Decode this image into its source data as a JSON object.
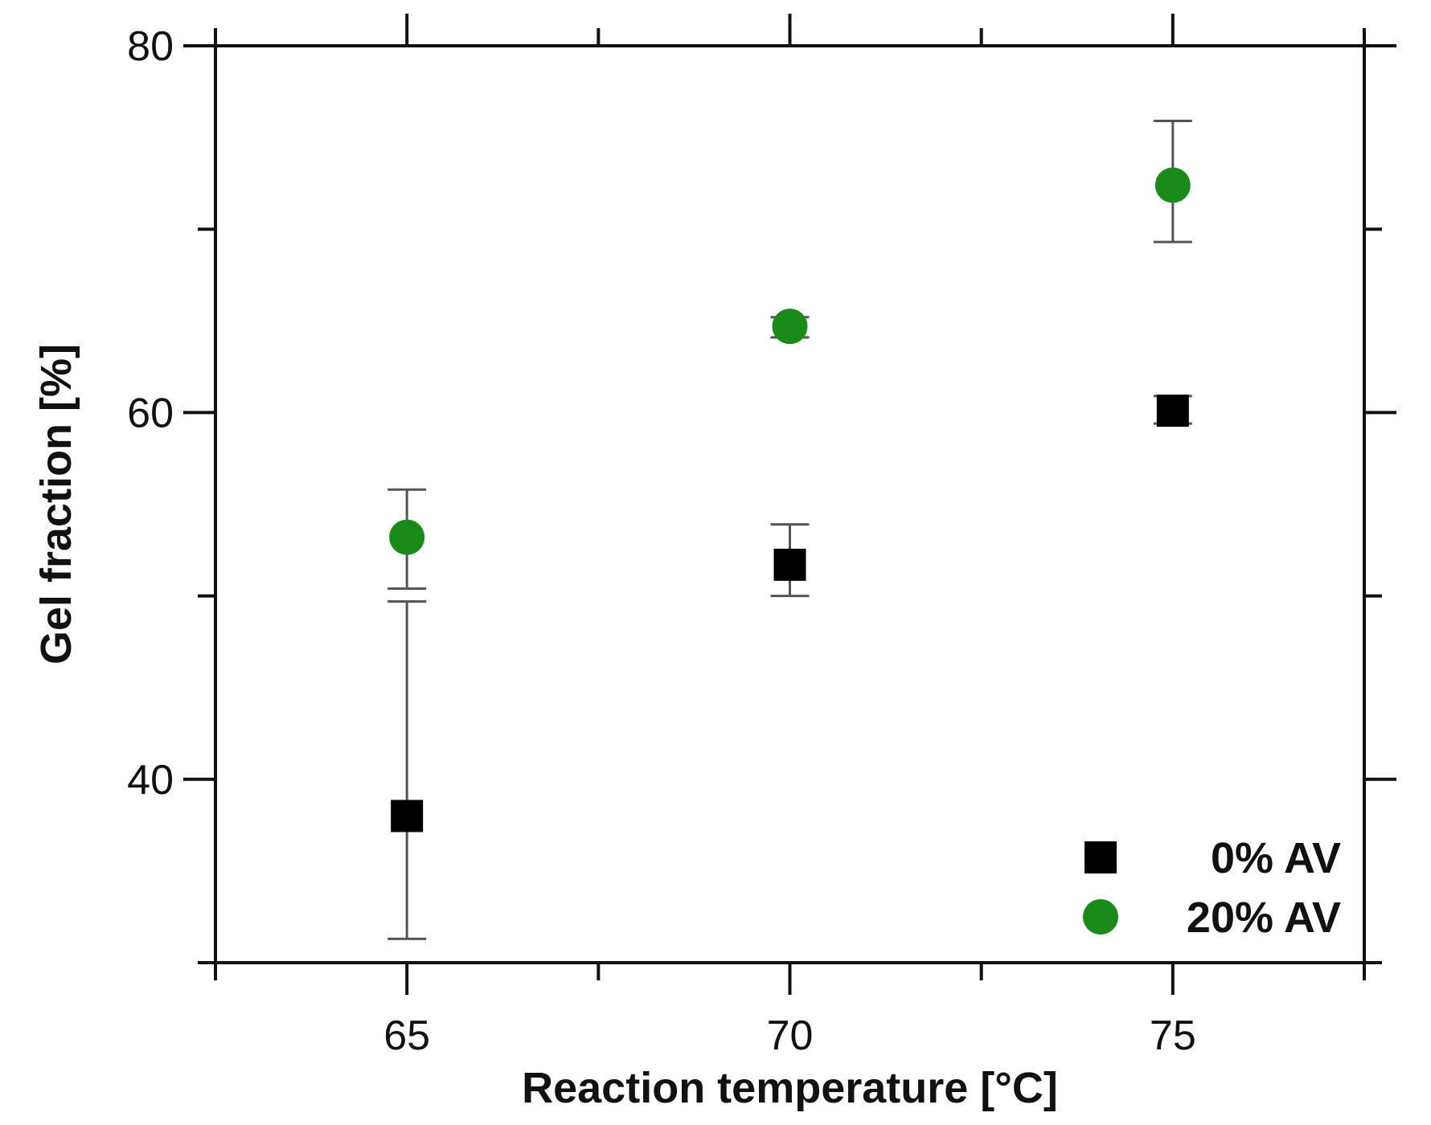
{
  "chart_data": {
    "type": "scatter",
    "title": "",
    "xlabel": "Reaction temperature [°C]",
    "ylabel": "Gel fraction [%]",
    "xlim": [
      62.5,
      77.5
    ],
    "ylim": [
      30,
      80
    ],
    "x_ticks": [
      "65",
      "70",
      "75"
    ],
    "y_ticks": [
      "40",
      "60",
      "80"
    ],
    "grid": false,
    "legend_position": "bottom-right",
    "series": [
      {
        "name": "0% AV",
        "marker": "square",
        "color": "#000000",
        "points": [
          {
            "x": 65,
            "y": 38.0,
            "err_low": 31.3,
            "err_high": 49.7
          },
          {
            "x": 70,
            "y": 51.7,
            "err_low": 50.0,
            "err_high": 53.9
          },
          {
            "x": 75,
            "y": 60.1,
            "err_low": 59.4,
            "err_high": 60.9
          }
        ]
      },
      {
        "name": "20% AV",
        "marker": "circle",
        "color": "#1a8a1a",
        "points": [
          {
            "x": 65,
            "y": 53.2,
            "err_low": 50.4,
            "err_high": 55.8
          },
          {
            "x": 70,
            "y": 64.7,
            "err_low": 64.1,
            "err_high": 65.2
          },
          {
            "x": 75,
            "y": 72.4,
            "err_low": 69.3,
            "err_high": 75.9
          }
        ]
      }
    ]
  }
}
